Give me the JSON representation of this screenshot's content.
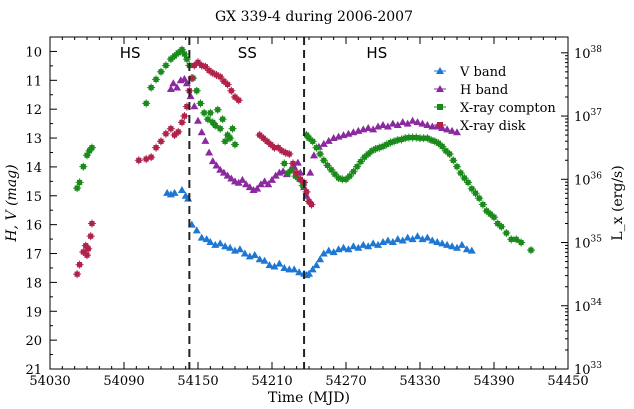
{
  "chart_data": {
    "type": "scatter",
    "title": "GX 339-4 during 2006-2007",
    "xlabel": "Time (MJD)",
    "ylabel": "H, V (mag)",
    "ylabel_right": "L_x (erg/s)",
    "xlim": [
      54030,
      54450
    ],
    "ylim": [
      21,
      9.5
    ],
    "ylim_right_log": [
      33,
      38.25
    ],
    "x_ticks": [
      54030,
      54090,
      54150,
      54210,
      54270,
      54330,
      54390,
      54450
    ],
    "y_ticks": [
      10,
      11,
      12,
      13,
      14,
      15,
      16,
      17,
      18,
      19,
      20,
      21
    ],
    "y_right_ticks": [
      {
        "base": "10",
        "exp": "33",
        "log": 33
      },
      {
        "base": "10",
        "exp": "34",
        "log": 34
      },
      {
        "base": "10",
        "exp": "35",
        "log": 35
      },
      {
        "base": "10",
        "exp": "36",
        "log": 36
      },
      {
        "base": "10",
        "exp": "37",
        "log": 37
      },
      {
        "base": "10",
        "exp": "38",
        "log": 38
      }
    ],
    "state_transitions": [
      54143,
      54236
    ],
    "regions": [
      {
        "label": "HS",
        "x": 54095
      },
      {
        "label": "SS",
        "x": 54190
      },
      {
        "label": "HS",
        "x": 54295
      }
    ],
    "series": [
      {
        "name": "V band",
        "axis": "left",
        "marker": "triangle-up",
        "color": "#1f77d4",
        "points": [
          [
            54125,
            14.9
          ],
          [
            54128,
            14.95
          ],
          [
            54131,
            14.9
          ],
          [
            54137,
            14.8
          ],
          [
            54140,
            15.0
          ],
          [
            54142,
            15.1
          ],
          [
            54145,
            16.0
          ],
          [
            54149,
            16.2
          ],
          [
            54153,
            16.45
          ],
          [
            54157,
            16.5
          ],
          [
            54160,
            16.6
          ],
          [
            54164,
            16.7
          ],
          [
            54168,
            16.65
          ],
          [
            54172,
            16.75
          ],
          [
            54176,
            16.8
          ],
          [
            54180,
            16.9
          ],
          [
            54184,
            16.85
          ],
          [
            54188,
            17.0
          ],
          [
            54192,
            17.1
          ],
          [
            54196,
            17.05
          ],
          [
            54200,
            17.2
          ],
          [
            54204,
            17.25
          ],
          [
            54208,
            17.4
          ],
          [
            54212,
            17.45
          ],
          [
            54216,
            17.35
          ],
          [
            54220,
            17.5
          ],
          [
            54224,
            17.55
          ],
          [
            54228,
            17.55
          ],
          [
            54232,
            17.65
          ],
          [
            54236,
            17.7
          ],
          [
            54238,
            17.75
          ],
          [
            54240,
            17.7
          ],
          [
            54243,
            17.55
          ],
          [
            54246,
            17.4
          ],
          [
            54249,
            17.2
          ],
          [
            54252,
            17.0
          ],
          [
            54256,
            16.9
          ],
          [
            54260,
            16.95
          ],
          [
            54264,
            16.85
          ],
          [
            54268,
            16.8
          ],
          [
            54272,
            16.85
          ],
          [
            54276,
            16.75
          ],
          [
            54280,
            16.8
          ],
          [
            54284,
            16.7
          ],
          [
            54288,
            16.75
          ],
          [
            54292,
            16.65
          ],
          [
            54296,
            16.7
          ],
          [
            54300,
            16.6
          ],
          [
            54304,
            16.55
          ],
          [
            54308,
            16.6
          ],
          [
            54312,
            16.5
          ],
          [
            54316,
            16.55
          ],
          [
            54320,
            16.45
          ],
          [
            54324,
            16.5
          ],
          [
            54328,
            16.4
          ],
          [
            54332,
            16.5
          ],
          [
            54336,
            16.45
          ],
          [
            54340,
            16.55
          ],
          [
            54344,
            16.6
          ],
          [
            54348,
            16.65
          ],
          [
            54352,
            16.7
          ],
          [
            54356,
            16.75
          ],
          [
            54360,
            16.8
          ],
          [
            54364,
            16.7
          ],
          [
            54368,
            16.85
          ],
          [
            54372,
            16.9
          ]
        ]
      },
      {
        "name": "H band",
        "axis": "left",
        "marker": "triangle-up",
        "color": "#8b2aa0",
        "points": [
          [
            54128,
            11.3
          ],
          [
            54130,
            11.1
          ],
          [
            54133,
            11.25
          ],
          [
            54136,
            11.0
          ],
          [
            54139,
            10.95
          ],
          [
            54141,
            11.1
          ],
          [
            54144,
            11.55
          ],
          [
            54147,
            11.9
          ],
          [
            54150,
            12.4
          ],
          [
            54153,
            12.8
          ],
          [
            54156,
            13.1
          ],
          [
            54159,
            13.5
          ],
          [
            54162,
            13.8
          ],
          [
            54165,
            13.95
          ],
          [
            54168,
            14.1
          ],
          [
            54171,
            14.2
          ],
          [
            54174,
            14.3
          ],
          [
            54177,
            14.4
          ],
          [
            54180,
            14.5
          ],
          [
            54183,
            14.55
          ],
          [
            54186,
            14.45
          ],
          [
            54189,
            14.6
          ],
          [
            54192,
            14.7
          ],
          [
            54195,
            14.8
          ],
          [
            54198,
            14.75
          ],
          [
            54201,
            14.6
          ],
          [
            54204,
            14.5
          ],
          [
            54207,
            14.6
          ],
          [
            54210,
            14.45
          ],
          [
            54213,
            14.3
          ],
          [
            54216,
            14.2
          ],
          [
            54219,
            14.15
          ],
          [
            54222,
            14.25
          ],
          [
            54225,
            14.1
          ],
          [
            54228,
            14.0
          ],
          [
            54231,
            13.85
          ],
          [
            54233,
            14.2
          ],
          [
            54236,
            14.7
          ],
          [
            54238,
            15.0
          ],
          [
            54241,
            14.2
          ],
          [
            54244,
            13.6
          ],
          [
            54248,
            13.3
          ],
          [
            54252,
            13.2
          ],
          [
            54256,
            13.1
          ],
          [
            54260,
            13.0
          ],
          [
            54264,
            12.95
          ],
          [
            54268,
            12.9
          ],
          [
            54272,
            12.85
          ],
          [
            54276,
            12.8
          ],
          [
            54280,
            12.75
          ],
          [
            54284,
            12.7
          ],
          [
            54288,
            12.65
          ],
          [
            54292,
            12.7
          ],
          [
            54296,
            12.6
          ],
          [
            54300,
            12.55
          ],
          [
            54304,
            12.6
          ],
          [
            54308,
            12.5
          ],
          [
            54312,
            12.55
          ],
          [
            54316,
            12.45
          ],
          [
            54320,
            12.5
          ],
          [
            54324,
            12.4
          ],
          [
            54328,
            12.45
          ],
          [
            54332,
            12.5
          ],
          [
            54336,
            12.55
          ],
          [
            54340,
            12.6
          ],
          [
            54344,
            12.6
          ],
          [
            54348,
            12.65
          ],
          [
            54352,
            12.7
          ],
          [
            54356,
            12.75
          ],
          [
            54360,
            12.8
          ]
        ]
      },
      {
        "name": "X-ray compton",
        "axis": "right",
        "marker": "square",
        "color": "#1a8a1a",
        "points": [
          [
            54052,
            35.86
          ],
          [
            54054,
            35.95
          ],
          [
            54057,
            36.2
          ],
          [
            54060,
            36.38
          ],
          [
            54062,
            36.45
          ],
          [
            54064,
            36.5
          ],
          [
            54108,
            37.2
          ],
          [
            54112,
            37.45
          ],
          [
            54116,
            37.58
          ],
          [
            54120,
            37.7
          ],
          [
            54124,
            37.8
          ],
          [
            54128,
            37.9
          ],
          [
            54131,
            37.95
          ],
          [
            54134,
            38.0
          ],
          [
            54137,
            38.05
          ],
          [
            54139,
            37.98
          ],
          [
            54141,
            37.9
          ],
          [
            54143,
            37.8
          ],
          [
            54146,
            37.6
          ],
          [
            54149,
            37.4
          ],
          [
            54152,
            37.2
          ],
          [
            54155,
            37.05
          ],
          [
            54158,
            36.95
          ],
          [
            54160,
            37.05
          ],
          [
            54162,
            36.9
          ],
          [
            54164,
            36.85
          ],
          [
            54166,
            37.1
          ],
          [
            54168,
            36.8
          ],
          [
            54170,
            36.95
          ],
          [
            54172,
            36.6
          ],
          [
            54174,
            36.7
          ],
          [
            54176,
            36.65
          ],
          [
            54178,
            36.8
          ],
          [
            54180,
            36.55
          ],
          [
            54220,
            36.25
          ],
          [
            54223,
            36.1
          ],
          [
            54226,
            36.15
          ],
          [
            54229,
            36.05
          ],
          [
            54232,
            36.0
          ],
          [
            54235,
            35.9
          ],
          [
            54238,
            36.7
          ],
          [
            54240,
            36.65
          ],
          [
            54243,
            36.6
          ],
          [
            54246,
            36.5
          ],
          [
            54249,
            36.4
          ],
          [
            54252,
            36.3
          ],
          [
            54255,
            36.22
          ],
          [
            54258,
            36.15
          ],
          [
            54261,
            36.08
          ],
          [
            54264,
            36.02
          ],
          [
            54267,
            36.0
          ],
          [
            54270,
            36.0
          ],
          [
            54273,
            36.05
          ],
          [
            54276,
            36.12
          ],
          [
            54279,
            36.2
          ],
          [
            54282,
            36.28
          ],
          [
            54285,
            36.35
          ],
          [
            54288,
            36.4
          ],
          [
            54291,
            36.45
          ],
          [
            54294,
            36.48
          ],
          [
            54297,
            36.5
          ],
          [
            54300,
            36.52
          ],
          [
            54303,
            36.55
          ],
          [
            54306,
            36.58
          ],
          [
            54309,
            36.6
          ],
          [
            54312,
            36.62
          ],
          [
            54315,
            36.63
          ],
          [
            54318,
            36.65
          ],
          [
            54321,
            36.66
          ],
          [
            54324,
            36.66
          ],
          [
            54327,
            36.66
          ],
          [
            54330,
            36.65
          ],
          [
            54333,
            36.65
          ],
          [
            54336,
            36.65
          ],
          [
            54339,
            36.62
          ],
          [
            54342,
            36.6
          ],
          [
            54345,
            36.57
          ],
          [
            54348,
            36.52
          ],
          [
            54351,
            36.45
          ],
          [
            54354,
            36.4
          ],
          [
            54357,
            36.3
          ],
          [
            54360,
            36.2
          ],
          [
            54363,
            36.1
          ],
          [
            54366,
            36.02
          ],
          [
            54369,
            35.95
          ],
          [
            54372,
            35.85
          ],
          [
            54375,
            35.78
          ],
          [
            54378,
            35.7
          ],
          [
            54381,
            35.6
          ],
          [
            54384,
            35.5
          ],
          [
            54387,
            35.45
          ],
          [
            54390,
            35.4
          ],
          [
            54393,
            35.3
          ],
          [
            54396,
            35.25
          ],
          [
            54400,
            35.15
          ],
          [
            54404,
            35.05
          ],
          [
            54408,
            35.05
          ],
          [
            54412,
            35.0
          ],
          [
            54420,
            34.88
          ]
        ]
      },
      {
        "name": "X-ray disk",
        "axis": "right",
        "marker": "square",
        "color": "#b0224a",
        "points": [
          [
            54052,
            34.5
          ],
          [
            54054,
            34.65
          ],
          [
            54057,
            34.85
          ],
          [
            54059,
            34.95
          ],
          [
            54060,
            34.8
          ],
          [
            54061,
            34.9
          ],
          [
            54063,
            35.1
          ],
          [
            54064,
            35.3
          ],
          [
            54102,
            36.3
          ],
          [
            54108,
            36.32
          ],
          [
            54112,
            36.35
          ],
          [
            54116,
            36.5
          ],
          [
            54120,
            36.6
          ],
          [
            54124,
            36.72
          ],
          [
            54128,
            36.8
          ],
          [
            54131,
            36.7
          ],
          [
            54134,
            36.75
          ],
          [
            54137,
            36.9
          ],
          [
            54139,
            37.0
          ],
          [
            54141,
            37.15
          ],
          [
            54143,
            37.4
          ],
          [
            54145,
            37.6
          ],
          [
            54147,
            37.8
          ],
          [
            54150,
            37.85
          ],
          [
            54153,
            37.8
          ],
          [
            54156,
            37.78
          ],
          [
            54159,
            37.72
          ],
          [
            54162,
            37.68
          ],
          [
            54165,
            37.65
          ],
          [
            54168,
            37.62
          ],
          [
            54171,
            37.55
          ],
          [
            54174,
            37.5
          ],
          [
            54177,
            37.4
          ],
          [
            54180,
            37.3
          ],
          [
            54183,
            37.25
          ],
          [
            54200,
            36.7
          ],
          [
            54203,
            36.65
          ],
          [
            54206,
            36.6
          ],
          [
            54209,
            36.55
          ],
          [
            54212,
            36.5
          ],
          [
            54215,
            36.5
          ],
          [
            54218,
            36.45
          ],
          [
            54221,
            36.42
          ],
          [
            54224,
            36.4
          ],
          [
            54227,
            36.25
          ],
          [
            54230,
            36.1
          ],
          [
            54233,
            36.0
          ],
          [
            54236,
            35.95
          ],
          [
            54238,
            35.8
          ],
          [
            54240,
            35.65
          ],
          [
            54242,
            35.6
          ]
        ]
      }
    ]
  }
}
